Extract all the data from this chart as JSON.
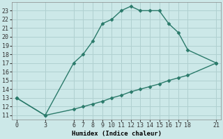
{
  "xlabel": "Humidex (Indice chaleur)",
  "bg_color": "#cce8e8",
  "grid_color": "#b0d0d0",
  "line_color": "#2a7a6a",
  "upper_x": [
    0,
    3,
    6,
    7,
    8,
    9,
    10,
    11,
    12,
    13,
    14,
    15,
    16,
    17,
    18,
    21
  ],
  "upper_y": [
    13,
    11,
    17,
    18,
    19.5,
    21.5,
    22,
    23,
    23.5,
    23,
    23,
    23,
    21.5,
    20.5,
    18.5,
    17
  ],
  "lower_x": [
    0,
    3,
    6,
    7,
    8,
    9,
    10,
    11,
    12,
    13,
    14,
    15,
    16,
    17,
    18,
    21
  ],
  "lower_y": [
    13,
    11,
    11.7,
    12.0,
    12.3,
    12.6,
    13.0,
    13.3,
    13.7,
    14.0,
    14.3,
    14.6,
    15.0,
    15.3,
    15.6,
    17
  ],
  "xlim": [
    -0.5,
    21.5
  ],
  "ylim": [
    10.5,
    24.0
  ],
  "xticks": [
    0,
    3,
    6,
    7,
    8,
    9,
    10,
    11,
    12,
    13,
    14,
    15,
    16,
    17,
    18,
    21
  ],
  "yticks": [
    11,
    12,
    13,
    14,
    15,
    16,
    17,
    18,
    19,
    20,
    21,
    22,
    23
  ],
  "label_fontsize": 6.5,
  "tick_fontsize": 6
}
